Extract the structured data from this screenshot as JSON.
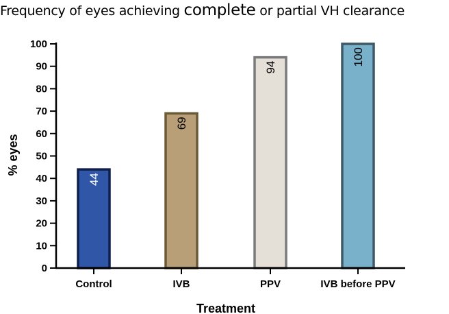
{
  "chart_data": {
    "type": "bar",
    "title": {
      "part1": "Frequency of eyes achieving ",
      "part2": "complete",
      "part3": " or partial VH clearance"
    },
    "xlabel": "Treatment",
    "ylabel": "% eyes",
    "ylim": [
      0,
      100
    ],
    "yticks": [
      "0",
      "10",
      "20",
      "30",
      "40",
      "50",
      "60",
      "70",
      "80",
      "90",
      "100"
    ],
    "categories": [
      "Control",
      "IVB",
      "PPV",
      "IVB before PPV"
    ],
    "values": [
      44,
      69,
      94,
      100
    ],
    "data_labels": [
      "44",
      "69",
      "94",
      "100"
    ],
    "grid": false,
    "legend": "none",
    "bar_fill_colors": [
      "#2f56a7",
      "#b89f78",
      "#e4e0d7",
      "#79b1cb"
    ],
    "bar_edge_colors": [
      "#0f1f4a",
      "#6b5a36",
      "#7a7a7a",
      "#3f5966"
    ],
    "label_colors": [
      "#ffffff",
      "#000000",
      "#000000",
      "#000000"
    ]
  }
}
